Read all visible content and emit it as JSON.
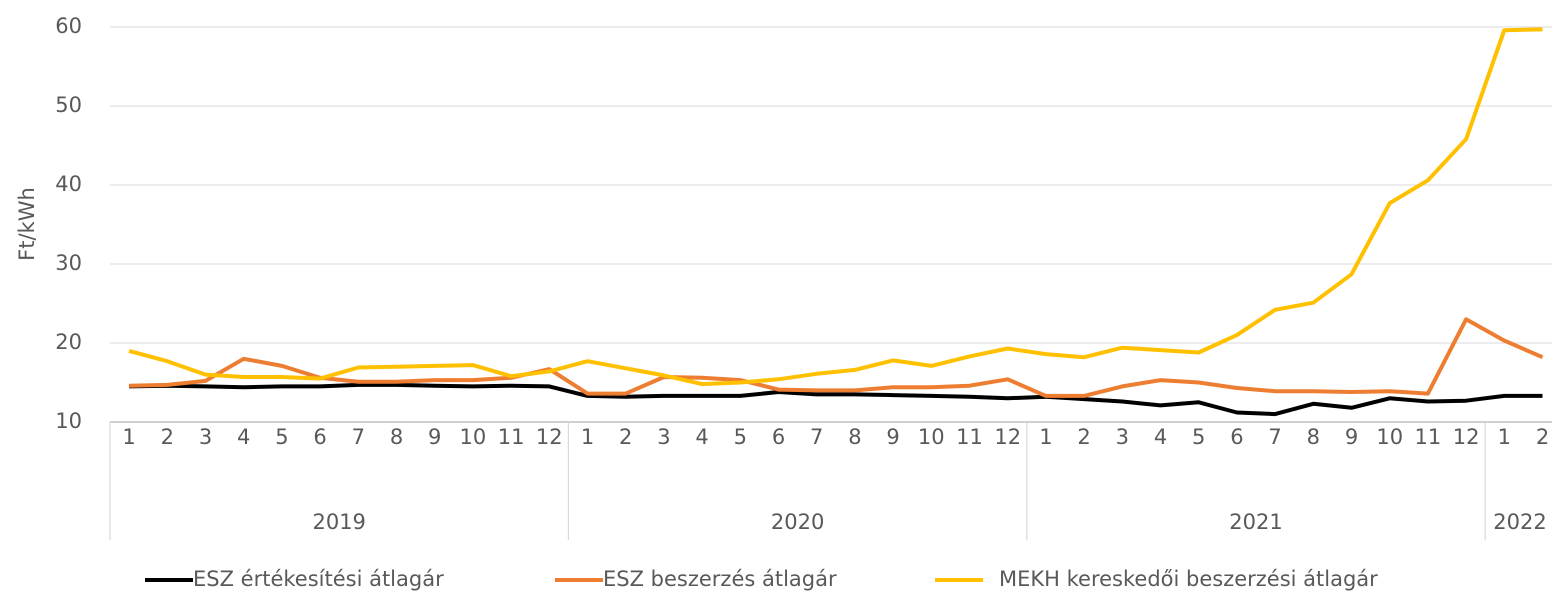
{
  "chart_data": {
    "type": "line",
    "y_label": "Ft/kWh",
    "groups": [
      {
        "name": "2019",
        "categories": [
          "1",
          "2",
          "3",
          "4",
          "5",
          "6",
          "7",
          "8",
          "9",
          "10",
          "11",
          "12"
        ]
      },
      {
        "name": "2020",
        "categories": [
          "1",
          "2",
          "3",
          "4",
          "5",
          "6",
          "7",
          "8",
          "9",
          "10",
          "11",
          "12"
        ]
      },
      {
        "name": "2021",
        "categories": [
          "1",
          "2",
          "3",
          "4",
          "5",
          "6",
          "7",
          "8",
          "9",
          "10",
          "11",
          "12"
        ]
      },
      {
        "name": "2022",
        "categories": [
          "1",
          "2"
        ]
      }
    ],
    "series": [
      {
        "name": "ESZ értékesítési átlagár",
        "color": "#000000",
        "values": [
          14.5,
          14.6,
          14.5,
          14.4,
          14.5,
          14.5,
          14.7,
          14.7,
          14.6,
          14.5,
          14.6,
          14.5,
          13.3,
          13.2,
          13.3,
          13.3,
          13.3,
          13.8,
          13.5,
          13.5,
          13.4,
          13.3,
          13.2,
          13.0,
          13.2,
          12.9,
          12.6,
          12.1,
          12.5,
          11.2,
          11.0,
          12.3,
          11.8,
          13.0,
          12.6,
          12.7,
          13.3,
          13.3
        ]
      },
      {
        "name": "ESZ beszerzés átlagár",
        "color": "#ed7d31",
        "values": [
          14.6,
          14.7,
          15.2,
          18.0,
          17.1,
          15.6,
          15.1,
          15.1,
          15.3,
          15.3,
          15.6,
          16.7,
          13.6,
          13.6,
          15.7,
          15.6,
          15.3,
          14.1,
          14.0,
          14.0,
          14.4,
          14.4,
          14.6,
          15.4,
          13.3,
          13.3,
          14.5,
          15.3,
          15.0,
          14.3,
          13.9,
          13.9,
          13.8,
          13.9,
          13.6,
          23.0,
          20.3,
          18.2
        ]
      },
      {
        "name": "MEKH kereskedői beszerzési átlagár",
        "color": "#ffc000",
        "values": [
          19.0,
          17.7,
          16.0,
          15.7,
          15.7,
          15.5,
          16.9,
          17.0,
          17.1,
          17.2,
          15.8,
          16.4,
          17.7,
          16.8,
          15.9,
          14.8,
          15.0,
          15.4,
          16.1,
          16.6,
          17.8,
          17.1,
          18.3,
          19.3,
          18.6,
          18.2,
          19.4,
          19.1,
          18.8,
          21.0,
          24.2,
          25.1,
          28.7,
          37.7,
          40.6,
          45.8,
          59.6,
          59.7
        ]
      }
    ],
    "ylim": [
      10,
      60
    ],
    "yticks": [
      10,
      20,
      30,
      40,
      50,
      60
    ],
    "grid": true
  }
}
